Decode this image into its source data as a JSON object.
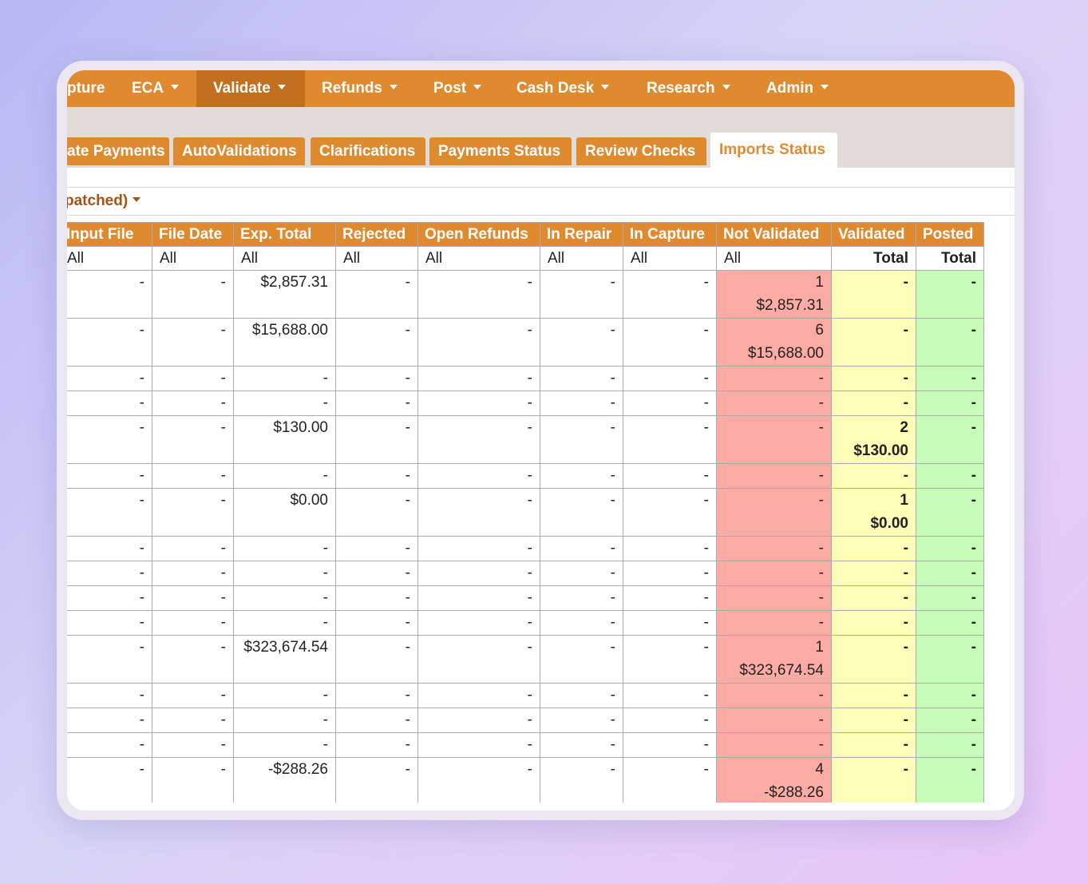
{
  "nav": {
    "items": [
      {
        "label": "pture"
      },
      {
        "label": "ECA"
      },
      {
        "label": "Validate",
        "active": true
      },
      {
        "label": "Refunds"
      },
      {
        "label": "Post"
      },
      {
        "label": "Cash Desk"
      },
      {
        "label": "Research"
      },
      {
        "label": "Admin"
      }
    ]
  },
  "tabs": [
    {
      "label": "ate Payments"
    },
    {
      "label": "AutoValidations"
    },
    {
      "label": "Clarifications"
    },
    {
      "label": "Payments Status"
    },
    {
      "label": "Review Checks"
    },
    {
      "label": "Imports Status",
      "active": true
    }
  ],
  "filter": {
    "label": "patched)"
  },
  "colors": {
    "brand": "#e08a30",
    "brand_dark": "#c26f20",
    "not_validated": "#fcaca5",
    "validated": "#fdfdb8",
    "posted": "#c6fcb8"
  },
  "table": {
    "columns": [
      "Input File",
      "File Date",
      "Exp. Total",
      "Rejected",
      "Open Refunds",
      "In Repair",
      "In Capture",
      "Not Validated",
      "Validated",
      "Posted"
    ],
    "filters": [
      "All",
      "All",
      "All",
      "All",
      "All",
      "All",
      "All",
      "All",
      "Total",
      "Total"
    ],
    "rows": [
      [
        "-",
        "-",
        "$2,857.31",
        "-",
        "-",
        "-",
        "-",
        [
          "1",
          "$2,857.31"
        ],
        "-",
        "-"
      ],
      [
        "-",
        "-",
        "$15,688.00",
        "-",
        "-",
        "-",
        "-",
        [
          "6",
          "$15,688.00"
        ],
        "-",
        "-"
      ],
      [
        "-",
        "-",
        "-",
        "-",
        "-",
        "-",
        "-",
        "-",
        "-",
        "-"
      ],
      [
        "-",
        "-",
        "-",
        "-",
        "-",
        "-",
        "-",
        "-",
        "-",
        "-"
      ],
      [
        "-",
        "-",
        "$130.00",
        "-",
        "-",
        "-",
        "-",
        "-",
        [
          "2",
          "$130.00"
        ],
        "-"
      ],
      [
        "-",
        "-",
        "-",
        "-",
        "-",
        "-",
        "-",
        "-",
        "-",
        "-"
      ],
      [
        "-",
        "-",
        "$0.00",
        "-",
        "-",
        "-",
        "-",
        "-",
        [
          "1",
          "$0.00"
        ],
        "-"
      ],
      [
        "-",
        "-",
        "-",
        "-",
        "-",
        "-",
        "-",
        "-",
        "-",
        "-"
      ],
      [
        "-",
        "-",
        "-",
        "-",
        "-",
        "-",
        "-",
        "-",
        "-",
        "-"
      ],
      [
        "-",
        "-",
        "-",
        "-",
        "-",
        "-",
        "-",
        "-",
        "-",
        "-"
      ],
      [
        "-",
        "-",
        "-",
        "-",
        "-",
        "-",
        "-",
        "-",
        "-",
        "-"
      ],
      [
        "-",
        "-",
        "$323,674.54",
        "-",
        "-",
        "-",
        "-",
        [
          "1",
          "$323,674.54"
        ],
        "-",
        "-"
      ],
      [
        "-",
        "-",
        "-",
        "-",
        "-",
        "-",
        "-",
        "-",
        "-",
        "-"
      ],
      [
        "-",
        "-",
        "-",
        "-",
        "-",
        "-",
        "-",
        "-",
        "-",
        "-"
      ],
      [
        "-",
        "-",
        "-",
        "-",
        "-",
        "-",
        "-",
        "-",
        "-",
        "-"
      ],
      [
        "-",
        "-",
        "-$288.26",
        "-",
        "-",
        "-",
        "-",
        [
          "4",
          "-$288.26"
        ],
        "-",
        "-"
      ]
    ]
  }
}
